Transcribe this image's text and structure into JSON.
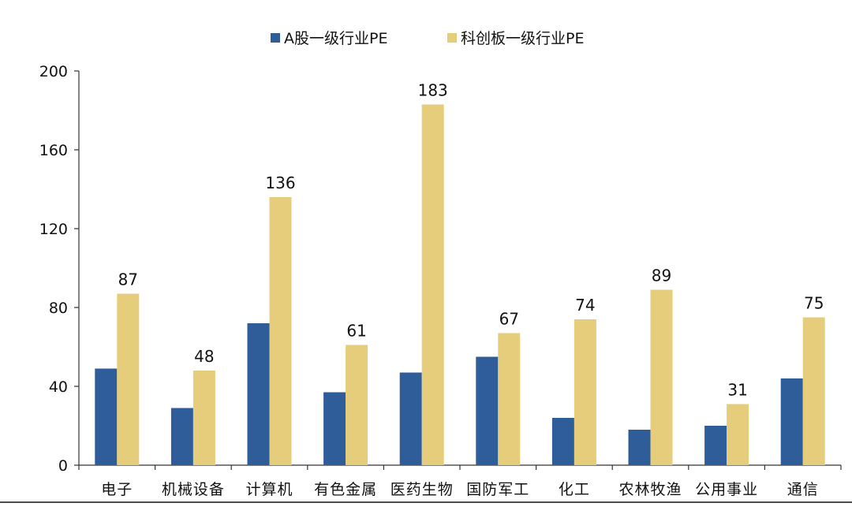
{
  "chart_data": {
    "type": "bar",
    "categories": [
      "电子",
      "机械设备",
      "计算机",
      "有色金属",
      "医药生物",
      "国防军工",
      "化工",
      "农林牧渔",
      "公用事业",
      "通信"
    ],
    "series": [
      {
        "name": "A股一级行业PE",
        "color": "#2f5d9a",
        "values": [
          49,
          29,
          72,
          37,
          47,
          55,
          24,
          18,
          20,
          44
        ],
        "show_labels": false
      },
      {
        "name": "科创板一级行业PE",
        "color": "#e6cd7c",
        "values": [
          87,
          48,
          136,
          61,
          183,
          67,
          74,
          89,
          31,
          75
        ],
        "show_labels": true
      }
    ],
    "ylim": [
      0,
      200
    ],
    "yticks": [
      0,
      40,
      80,
      120,
      160,
      200
    ],
    "title": "",
    "xlabel": "",
    "ylabel": "",
    "legend_position": "top-center",
    "grid": false
  }
}
